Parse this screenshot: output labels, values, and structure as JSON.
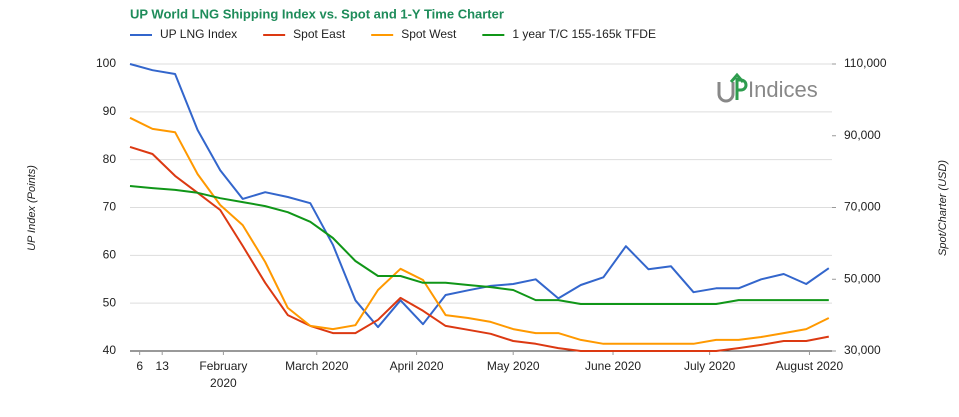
{
  "chart_data": {
    "type": "line",
    "title": "UP World LNG Shipping Index vs. Spot and 1-Y Time Charter",
    "y_label": "UP Index (Points)",
    "y2_label": "Spot/Charter (USD)",
    "logo": "Indices",
    "legend": "top",
    "grid": true,
    "x": [
      "2020-01-03",
      "2020-01-10",
      "2020-01-17",
      "2020-01-24",
      "2020-01-31",
      "2020-02-07",
      "2020-02-14",
      "2020-02-21",
      "2020-02-28",
      "2020-03-06",
      "2020-03-13",
      "2020-03-20",
      "2020-03-27",
      "2020-04-03",
      "2020-04-10",
      "2020-04-17",
      "2020-04-24",
      "2020-05-01",
      "2020-05-08",
      "2020-05-15",
      "2020-05-22",
      "2020-05-29",
      "2020-06-05",
      "2020-06-12",
      "2020-06-19",
      "2020-06-26",
      "2020-07-03",
      "2020-07-10",
      "2020-07-17",
      "2020-07-24",
      "2020-07-31",
      "2020-08-07"
    ],
    "xlim": [
      "2020-01-03",
      "2020-08-08"
    ],
    "xticks": [
      {
        "value": "2020-01-06",
        "label": "6"
      },
      {
        "value": "2020-01-13",
        "label": "13"
      },
      {
        "value": "2020-02-01",
        "label": "February 2020"
      },
      {
        "value": "2020-03-01",
        "label": "March 2020"
      },
      {
        "value": "2020-04-01",
        "label": "April 2020"
      },
      {
        "value": "2020-05-01",
        "label": "May 2020"
      },
      {
        "value": "2020-06-01",
        "label": "June 2020"
      },
      {
        "value": "2020-07-01",
        "label": "July 2020"
      },
      {
        "value": "2020-08-01",
        "label": "August 2020"
      }
    ],
    "ylim": [
      40,
      100
    ],
    "yticks": [
      40,
      50,
      60,
      70,
      80,
      90,
      100
    ],
    "y2lim": [
      30000,
      110000
    ],
    "y2ticks": [
      {
        "value": 30000,
        "label": "30,000"
      },
      {
        "value": 50000,
        "label": "50,000"
      },
      {
        "value": 70000,
        "label": "70,000"
      },
      {
        "value": 90000,
        "label": "90,000"
      },
      {
        "value": 110000,
        "label": "110,000"
      }
    ],
    "series": [
      {
        "name": "UP LNG Index",
        "color": "#3366cc",
        "values": [
          100,
          98.7,
          97.9,
          86.2,
          77.8,
          71.8,
          73.2,
          72.2,
          70.9,
          62.2,
          50.6,
          45,
          50.6,
          45.6,
          51.7,
          52.7,
          53.6,
          54,
          55,
          51,
          53.8,
          55.4,
          61.9,
          57.1,
          57.7,
          52.3,
          53.1,
          53.1,
          55,
          56.1,
          54,
          57.3
        ]
      },
      {
        "name": "Spot East",
        "color": "#dc3912",
        "axis": "y2",
        "values": [
          86900,
          84900,
          78800,
          74100,
          69300,
          59300,
          49000,
          40000,
          37000,
          35000,
          35000,
          38700,
          44800,
          41200,
          37000,
          35900,
          34800,
          32800,
          32000,
          30800,
          30000,
          30000,
          30000,
          30000,
          30000,
          30000,
          30000,
          30800,
          31700,
          32800,
          32800,
          34000
        ]
      },
      {
        "name": "Spot West",
        "color": "#ff9900",
        "axis": "y2",
        "values": [
          95000,
          91900,
          91000,
          79300,
          70700,
          65100,
          54800,
          42000,
          37000,
          36100,
          37200,
          47000,
          52900,
          49800,
          40000,
          39200,
          38100,
          36100,
          35000,
          35000,
          33100,
          32000,
          32000,
          32000,
          32000,
          32000,
          33100,
          33100,
          33900,
          35000,
          36100,
          39200
        ]
      },
      {
        "name": "1 year T/C 155-165k TFDE",
        "color": "#109618",
        "axis": "y2",
        "values": [
          76000,
          75400,
          74900,
          74100,
          72600,
          71500,
          70400,
          68700,
          66000,
          61500,
          55100,
          50900,
          50900,
          49000,
          49000,
          48400,
          47800,
          47000,
          44200,
          44200,
          43100,
          43100,
          43100,
          43100,
          43100,
          43100,
          43100,
          44200,
          44200,
          44200,
          44200,
          44200
        ]
      }
    ]
  }
}
